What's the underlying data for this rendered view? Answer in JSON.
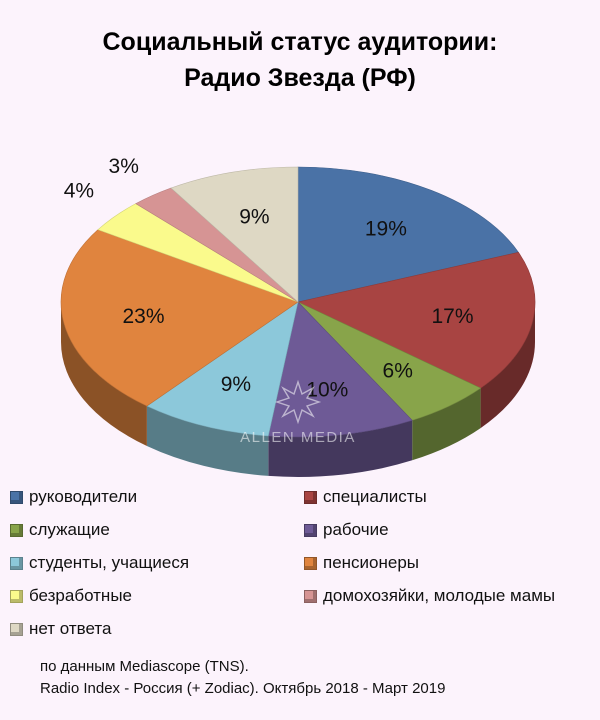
{
  "title_lines": [
    "Социальный статус аудитории:",
    "Радио Звезда (РФ)"
  ],
  "watermark": "ALLEN MEDIA",
  "source_lines": [
    "по данным Mediascope (TNS).",
    "Radio Index - Россия (+ Zodiac). Октябрь 2018 - Март 2019"
  ],
  "chart_data": {
    "type": "pie",
    "title": "Социальный статус аудитории: Радио Звезда (РФ)",
    "legend_position": "bottom",
    "slices": [
      {
        "label": "руководители",
        "value": 19,
        "display": "19%",
        "color": "#4a72a6"
      },
      {
        "label": "специалисты",
        "value": 17,
        "display": "17%",
        "color": "#a84442"
      },
      {
        "label": "служащие",
        "value": 6,
        "display": "6%",
        "color": "#88a44a"
      },
      {
        "label": "рабочие",
        "value": 10,
        "display": "10%",
        "color": "#6e5a96"
      },
      {
        "label": "студенты, учащиеся",
        "value": 9,
        "display": "9%",
        "color": "#8cc8da"
      },
      {
        "label": "пенсионеры",
        "value": 23,
        "display": "23%",
        "color": "#e0843e"
      },
      {
        "label": "безработные",
        "value": 4,
        "display": "4%",
        "color": "#fafa8c"
      },
      {
        "label": "домохозяйки, молодые мамы",
        "value": 3,
        "display": "3%",
        "color": "#d69494"
      },
      {
        "label": "нет ответа",
        "value": 9,
        "display": "9%",
        "color": "#ded8c4"
      }
    ]
  }
}
